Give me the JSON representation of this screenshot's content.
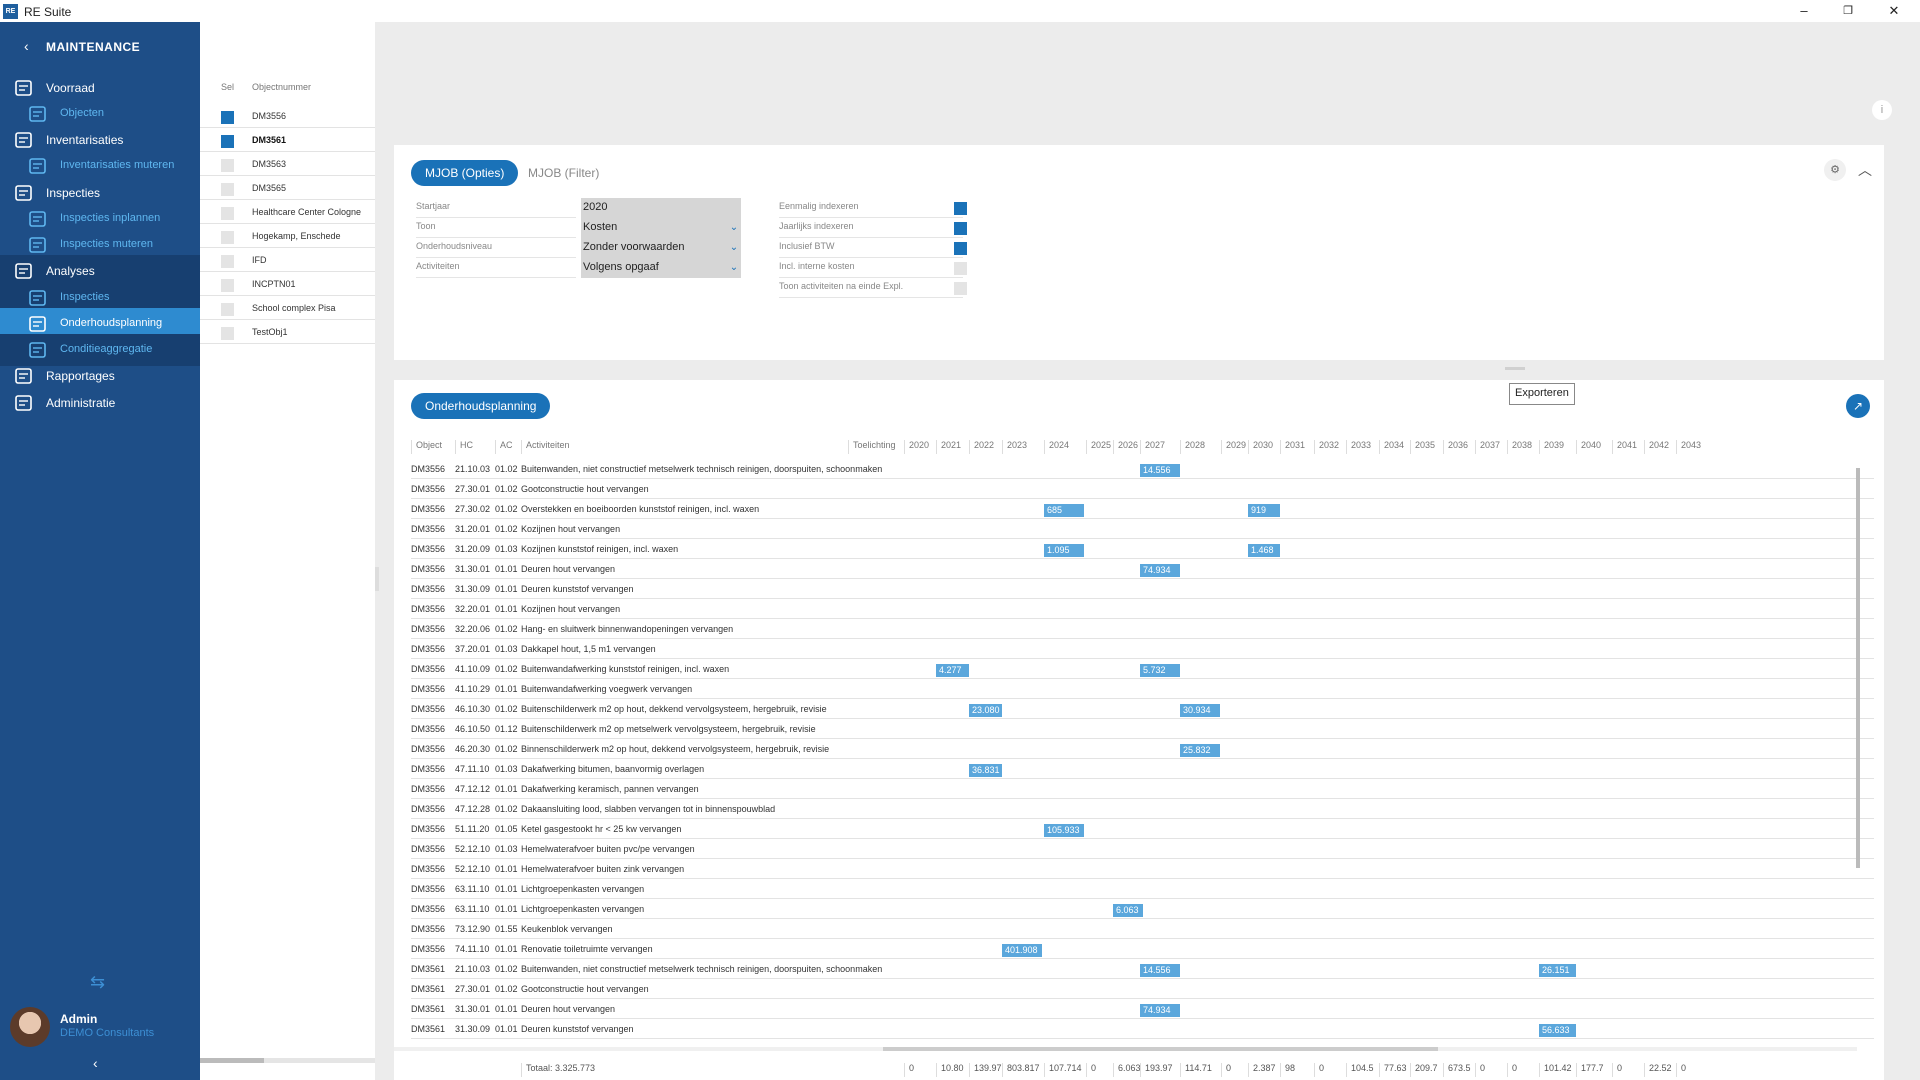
{
  "app": {
    "title": "RE Suite",
    "logo": "RE"
  },
  "window": {
    "minimize": "–",
    "maximize": "❐",
    "close": "✕"
  },
  "sidebar": {
    "back_label": "MAINTENANCE",
    "items": [
      {
        "label": "Voorraad",
        "icon": "building-icon",
        "level": "main"
      },
      {
        "label": "Objecten",
        "icon": "flag-icon",
        "level": "sub"
      },
      {
        "label": "Inventarisaties",
        "icon": "calendar-icon",
        "level": "main"
      },
      {
        "label": "Inventarisaties muteren",
        "icon": "chart-edit-icon",
        "level": "sub"
      },
      {
        "label": "Inspecties",
        "icon": "checklist-icon",
        "level": "main"
      },
      {
        "label": "Inspecties inplannen",
        "icon": "calendar-edit-icon",
        "level": "sub"
      },
      {
        "label": "Inspecties muteren",
        "icon": "clipboard-icon",
        "level": "sub"
      },
      {
        "label": "Analyses",
        "icon": "analysis-icon",
        "level": "main"
      },
      {
        "label": "Inspecties",
        "icon": "edit-icon",
        "level": "sub"
      },
      {
        "label": "Onderhoudsplanning",
        "icon": "planning-icon",
        "level": "sub",
        "active": true
      },
      {
        "label": "Conditieaggregatie",
        "icon": "hierarchy-icon",
        "level": "sub"
      },
      {
        "label": "Rapportages",
        "icon": "report-icon",
        "level": "main"
      },
      {
        "label": "Administratie",
        "icon": "gear-icon",
        "level": "main"
      }
    ],
    "user": {
      "name": "Admin",
      "org": "DEMO Consultants"
    }
  },
  "objects": {
    "header_sel": "Sel",
    "header_num": "Objectnummer",
    "rows": [
      {
        "name": "DM3556",
        "checked": true,
        "bold": false
      },
      {
        "name": "DM3561",
        "checked": true,
        "bold": true
      },
      {
        "name": "DM3563",
        "checked": false,
        "bold": false
      },
      {
        "name": "DM3565",
        "checked": false,
        "bold": false
      },
      {
        "name": "Healthcare Center Cologne",
        "checked": false,
        "bold": false
      },
      {
        "name": "Hogekamp, Enschede",
        "checked": false,
        "bold": false
      },
      {
        "name": "IFD",
        "checked": false,
        "bold": false
      },
      {
        "name": "INCPTN01",
        "checked": false,
        "bold": false
      },
      {
        "name": "School complex Pisa",
        "checked": false,
        "bold": false
      },
      {
        "name": "TestObj1",
        "checked": false,
        "bold": false
      }
    ]
  },
  "options": {
    "tabs": [
      "MJOB (Opties)",
      "MJOB (Filter)"
    ],
    "fields": [
      {
        "label": "Startjaar",
        "value": "2020",
        "dropdown": false
      },
      {
        "label": "Toon",
        "value": "Kosten",
        "dropdown": true
      },
      {
        "label": "Onderhoudsniveau",
        "value": "Zonder voorwaarden",
        "dropdown": true
      },
      {
        "label": "Activiteiten",
        "value": "Volgens opgaaf",
        "dropdown": true
      }
    ],
    "checks": [
      {
        "label": "Eenmalig indexeren",
        "checked": true
      },
      {
        "label": "Jaarlijks indexeren",
        "checked": true
      },
      {
        "label": "Inclusief BTW",
        "checked": true
      },
      {
        "label": "Incl. interne kosten",
        "checked": false
      },
      {
        "label": "Toon activiteiten na einde Expl.",
        "checked": false
      }
    ]
  },
  "planning": {
    "title": "Onderhoudsplanning",
    "export_tooltip": "Exporteren",
    "columns": [
      "Object",
      "HC",
      "AC",
      "Activiteiten",
      "Toelichting"
    ],
    "years": [
      "2020",
      "2021",
      "2022",
      "2023",
      "2024",
      "2025",
      "2026",
      "2027",
      "2028",
      "2029",
      "2030",
      "2031",
      "2032",
      "2033",
      "2034",
      "2035",
      "2036",
      "2037",
      "2038",
      "2039",
      "2040",
      "2041",
      "2042",
      "2043"
    ],
    "rows": [
      {
        "obj": "DM3556",
        "hc": "21.10.03",
        "ac": "01.02",
        "act": "Buitenwanden, niet constructief metselwerk technisch reinigen, doorspuiten, schoonmaken",
        "bars": [
          {
            "year": "2027",
            "value": "14.556"
          }
        ]
      },
      {
        "obj": "DM3556",
        "hc": "27.30.01",
        "ac": "01.02",
        "act": "Gootconstructie hout vervangen",
        "bars": []
      },
      {
        "obj": "DM3556",
        "hc": "27.30.02",
        "ac": "01.02",
        "act": "Overstekken en boeiboorden kunststof reinigen, incl. waxen",
        "bars": [
          {
            "year": "2024",
            "value": "685"
          },
          {
            "year": "2030",
            "value": "919"
          }
        ]
      },
      {
        "obj": "DM3556",
        "hc": "31.20.01",
        "ac": "01.02",
        "act": "Kozijnen hout vervangen",
        "bars": []
      },
      {
        "obj": "DM3556",
        "hc": "31.20.09",
        "ac": "01.03",
        "act": "Kozijnen kunststof reinigen, incl. waxen",
        "bars": [
          {
            "year": "2024",
            "value": "1.095"
          },
          {
            "year": "2030",
            "value": "1.468"
          }
        ]
      },
      {
        "obj": "DM3556",
        "hc": "31.30.01",
        "ac": "01.01",
        "act": "Deuren hout vervangen",
        "bars": [
          {
            "year": "2027",
            "value": "74.934"
          }
        ]
      },
      {
        "obj": "DM3556",
        "hc": "31.30.09",
        "ac": "01.01",
        "act": "Deuren kunststof vervangen",
        "bars": []
      },
      {
        "obj": "DM3556",
        "hc": "32.20.01",
        "ac": "01.01",
        "act": "Kozijnen hout vervangen",
        "bars": []
      },
      {
        "obj": "DM3556",
        "hc": "32.20.06",
        "ac": "01.02",
        "act": "Hang- en sluitwerk binnenwandopeningen vervangen",
        "bars": []
      },
      {
        "obj": "DM3556",
        "hc": "37.20.01",
        "ac": "01.03",
        "act": "Dakkapel hout, 1,5 m1 vervangen",
        "bars": []
      },
      {
        "obj": "DM3556",
        "hc": "41.10.09",
        "ac": "01.02",
        "act": "Buitenwandafwerking kunststof reinigen, incl. waxen",
        "bars": [
          {
            "year": "2021",
            "value": "4.277"
          },
          {
            "year": "2027",
            "value": "5.732"
          }
        ]
      },
      {
        "obj": "DM3556",
        "hc": "41.10.29",
        "ac": "01.01",
        "act": "Buitenwandafwerking voegwerk vervangen",
        "bars": []
      },
      {
        "obj": "DM3556",
        "hc": "46.10.30",
        "ac": "01.02",
        "act": "Buitenschilderwerk m2 op hout, dekkend vervolgsysteem, hergebruik, revisie",
        "bars": [
          {
            "year": "2022",
            "value": "23.080"
          },
          {
            "year": "2028",
            "value": "30.934"
          }
        ]
      },
      {
        "obj": "DM3556",
        "hc": "46.10.50",
        "ac": "01.12",
        "act": "Buitenschilderwerk m2 op metselwerk vervolgsysteem, hergebruik, revisie",
        "bars": []
      },
      {
        "obj": "DM3556",
        "hc": "46.20.30",
        "ac": "01.02",
        "act": "Binnenschilderwerk m2 op hout, dekkend vervolgsysteem, hergebruik, revisie",
        "bars": [
          {
            "year": "2028",
            "value": "25.832"
          }
        ]
      },
      {
        "obj": "DM3556",
        "hc": "47.11.10",
        "ac": "01.03",
        "act": "Dakafwerking bitumen, baanvormig overlagen",
        "bars": [
          {
            "year": "2022",
            "value": "36.831"
          }
        ]
      },
      {
        "obj": "DM3556",
        "hc": "47.12.12",
        "ac": "01.01",
        "act": "Dakafwerking keramisch, pannen vervangen",
        "bars": []
      },
      {
        "obj": "DM3556",
        "hc": "47.12.28",
        "ac": "01.02",
        "act": "Dakaansluiting lood, slabben vervangen tot in binnenspouwblad",
        "bars": []
      },
      {
        "obj": "DM3556",
        "hc": "51.11.20",
        "ac": "01.05",
        "act": "Ketel gasgestookt hr < 25 kw vervangen",
        "bars": [
          {
            "year": "2024",
            "value": "105.933"
          }
        ]
      },
      {
        "obj": "DM3556",
        "hc": "52.12.10",
        "ac": "01.03",
        "act": "Hemelwaterafvoer buiten pvc/pe vervangen",
        "bars": []
      },
      {
        "obj": "DM3556",
        "hc": "52.12.10",
        "ac": "01.01",
        "act": "Hemelwaterafvoer buiten zink vervangen",
        "bars": []
      },
      {
        "obj": "DM3556",
        "hc": "63.11.10",
        "ac": "01.01",
        "act": "Lichtgroepenkasten vervangen",
        "bars": []
      },
      {
        "obj": "DM3556",
        "hc": "63.11.10",
        "ac": "01.01",
        "act": "Lichtgroepenkasten vervangen",
        "bars": [
          {
            "year": "2026",
            "value": "6.063"
          }
        ]
      },
      {
        "obj": "DM3556",
        "hc": "73.12.90",
        "ac": "01.55",
        "act": "Keukenblok vervangen",
        "bars": []
      },
      {
        "obj": "DM3556",
        "hc": "74.11.10",
        "ac": "01.01",
        "act": "Renovatie toiletruimte vervangen",
        "bars": [
          {
            "year": "2023",
            "value": "401.908"
          }
        ]
      },
      {
        "obj": "DM3561",
        "hc": "21.10.03",
        "ac": "01.02",
        "act": "Buitenwanden, niet constructief metselwerk technisch reinigen, doorspuiten, schoonmaken",
        "bars": [
          {
            "year": "2027",
            "value": "14.556"
          },
          {
            "year": "2039",
            "value": "26.151"
          }
        ]
      },
      {
        "obj": "DM3561",
        "hc": "27.30.01",
        "ac": "01.02",
        "act": "Gootconstructie hout vervangen",
        "bars": []
      },
      {
        "obj": "DM3561",
        "hc": "31.30.01",
        "ac": "01.01",
        "act": "Deuren hout vervangen",
        "bars": [
          {
            "year": "2027",
            "value": "74.934"
          }
        ]
      },
      {
        "obj": "DM3561",
        "hc": "31.30.09",
        "ac": "01.01",
        "act": "Deuren kunststof vervangen",
        "bars": [
          {
            "year": "2039",
            "value": "56.633"
          }
        ]
      }
    ],
    "totals_label": "Totaal: 3.325.773",
    "totals": [
      "0",
      "10.80",
      "139.97",
      "803.817",
      "107.714",
      "0",
      "6.063",
      "193.97",
      "114.71",
      "0",
      "2.387",
      "98",
      "0",
      "104.5",
      "77.63",
      "209.7",
      "673.5",
      "0",
      "0",
      "101.42",
      "177.7",
      "0",
      "22.52",
      "0"
    ]
  }
}
